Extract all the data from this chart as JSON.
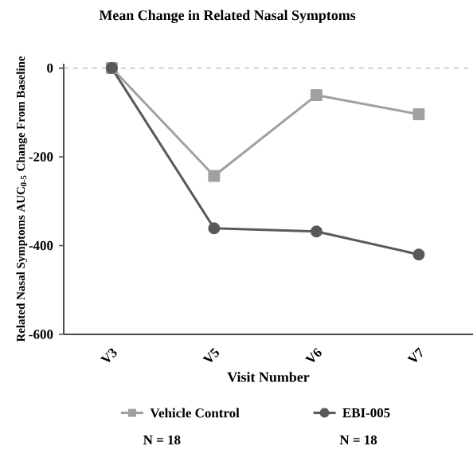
{
  "chart_data": {
    "type": "line",
    "title": "Mean Change in Related Nasal Symptoms",
    "xlabel": "Visit Number",
    "ylabel": "Related Nasal Symptoms AUC$_{0-5}$ Change From Baseline",
    "categories": [
      "V3",
      "V5",
      "V6",
      "V7"
    ],
    "series": [
      {
        "name": "Vehicle Control",
        "color": "#a0a0a0",
        "marker": "square",
        "values": [
          0,
          -243,
          -61,
          -104
        ]
      },
      {
        "name": "EBI-005",
        "color": "#595959",
        "marker": "circle",
        "values": [
          0,
          -361,
          -368,
          -420
        ]
      }
    ],
    "ylim": [
      -600,
      10
    ],
    "yticks": [
      0,
      -200,
      -400,
      -600
    ],
    "ref_lines": [
      {
        "axis": "y",
        "value": 0,
        "color": "#a0a0a0",
        "line_style": "dashed"
      }
    ],
    "legend": "bottom",
    "grid": false,
    "annotations": [
      "N = 18",
      "N = 18"
    ]
  }
}
